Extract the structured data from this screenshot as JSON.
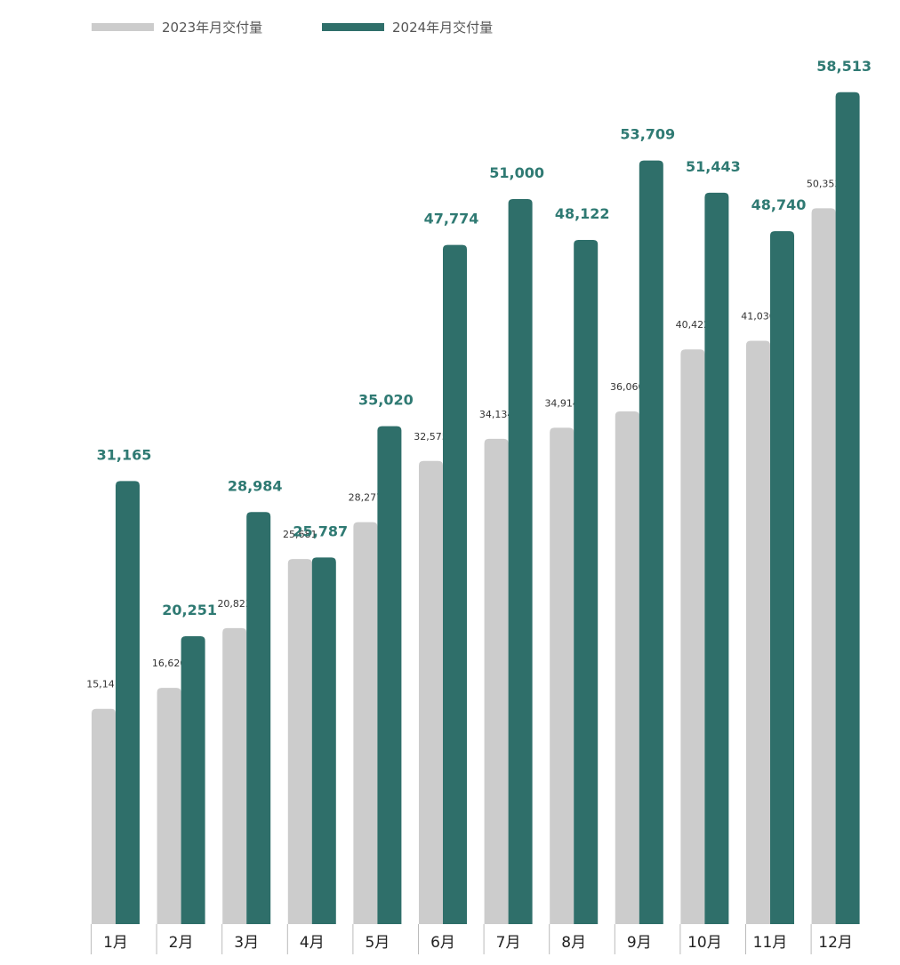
{
  "chart_data": {
    "type": "bar",
    "categories": [
      "1月",
      "2月",
      "3月",
      "4月",
      "5月",
      "6月",
      "7月",
      "8月",
      "9月",
      "10月",
      "11月",
      "12月"
    ],
    "series": [
      {
        "name": "2023年月交付量",
        "color": "#cccccc",
        "values": [
          15141,
          16620,
          20823,
          25681,
          28277,
          32575,
          34134,
          34914,
          36060,
          40422,
          41030,
          50353
        ],
        "labels": [
          "15,141",
          "16,620",
          "20,823",
          "25,681",
          "28,277",
          "32,575",
          "34,134",
          "34,914",
          "36,060",
          "40,422",
          "41,030",
          "50,353"
        ]
      },
      {
        "name": "2024年月交付量",
        "color": "#2f6f6a",
        "values": [
          31165,
          20251,
          28984,
          25787,
          35020,
          47774,
          51000,
          48122,
          53709,
          51443,
          48740,
          58513
        ],
        "labels": [
          "31,165",
          "20,251",
          "28,984",
          "25,787",
          "35,020",
          "47,774",
          "51,000",
          "48,122",
          "53,709",
          "51,443",
          "48,740",
          "58,513"
        ]
      }
    ],
    "ylim": [
      0,
      60000
    ],
    "legend_position": "top-left",
    "grid": false,
    "label_color_2024": "#2f7a73"
  }
}
